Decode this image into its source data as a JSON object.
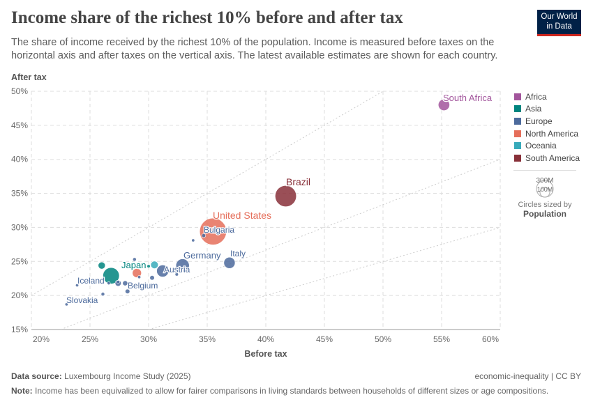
{
  "title": "Income share of the richest 10% before and after tax",
  "subtitle": "The share of income received by the richest 10% of the population. Income is measured before taxes on the horizontal axis and after taxes on the vertical axis. The latest available estimates are shown for each country.",
  "logo": "Our World in Data",
  "chart_data": {
    "type": "scatter",
    "xlabel": "Before tax",
    "ylabel": "After tax",
    "xlim": [
      20,
      60
    ],
    "ylim": [
      15,
      50
    ],
    "xticks": [
      "20%",
      "25%",
      "30%",
      "35%",
      "40%",
      "45%",
      "50%",
      "55%",
      "60%"
    ],
    "yticks": [
      "15%",
      "20%",
      "25%",
      "30%",
      "35%",
      "40%",
      "45%",
      "50%"
    ],
    "grid": true,
    "reference_lines": [
      1,
      0.6667,
      0.5
    ],
    "legend": [
      {
        "name": "Africa",
        "color": "#a2559c"
      },
      {
        "name": "Asia",
        "color": "#00847e"
      },
      {
        "name": "Europe",
        "color": "#4c6a9c"
      },
      {
        "name": "North America",
        "color": "#e56e5a"
      },
      {
        "name": "Oceania",
        "color": "#38aaba"
      },
      {
        "name": "South America",
        "color": "#883039"
      }
    ],
    "size_legend": {
      "large": "300M",
      "small": "100M",
      "caption": "Circles sized by",
      "variable": "Population"
    },
    "points": [
      {
        "label": "South Africa",
        "region": "Africa",
        "x": 55.2,
        "y": 48.0,
        "pop": 60
      },
      {
        "label": "Brazil",
        "region": "South America",
        "x": 41.7,
        "y": 34.6,
        "pop": 210
      },
      {
        "label": "United States",
        "region": "North America",
        "x": 35.5,
        "y": 29.4,
        "pop": 335
      },
      {
        "label": "Bulgaria",
        "region": "Europe",
        "x": 34.7,
        "y": 28.8,
        "pop": 7
      },
      {
        "label": "",
        "region": "Europe",
        "x": 33.8,
        "y": 28.1,
        "pop": 2
      },
      {
        "label": "Italy",
        "region": "Europe",
        "x": 36.9,
        "y": 24.8,
        "pop": 59
      },
      {
        "label": "Germany",
        "region": "Europe",
        "x": 32.9,
        "y": 24.4,
        "pop": 83
      },
      {
        "label": "Austria",
        "region": "Europe",
        "x": 31.2,
        "y": 23.6,
        "pop": 67
      },
      {
        "label": "",
        "region": "Europe",
        "x": 32.4,
        "y": 23.1,
        "pop": 5
      },
      {
        "label": "",
        "region": "Oceania",
        "x": 30.5,
        "y": 24.5,
        "pop": 26
      },
      {
        "label": "",
        "region": "Asia",
        "x": 30.0,
        "y": 24.3,
        "pop": 5
      },
      {
        "label": "Japan",
        "region": "Asia",
        "x": 26.8,
        "y": 22.9,
        "pop": 125
      },
      {
        "label": "",
        "region": "Asia",
        "x": 26.0,
        "y": 24.4,
        "pop": 23
      },
      {
        "label": "",
        "region": "North America",
        "x": 29.0,
        "y": 23.3,
        "pop": 38
      },
      {
        "label": "",
        "region": "Europe",
        "x": 28.8,
        "y": 25.3,
        "pop": 6
      },
      {
        "label": "",
        "region": "Europe",
        "x": 29.2,
        "y": 22.7,
        "pop": 3
      },
      {
        "label": "",
        "region": "Europe",
        "x": 30.3,
        "y": 22.6,
        "pop": 10
      },
      {
        "label": "",
        "region": "Europe",
        "x": 27.4,
        "y": 22.0,
        "pop": 4
      },
      {
        "label": "",
        "region": "Europe",
        "x": 27.4,
        "y": 21.8,
        "pop": 17
      },
      {
        "label": "Belgium",
        "region": "Europe",
        "x": 28.0,
        "y": 21.8,
        "pop": 12
      },
      {
        "label": "",
        "region": "Europe",
        "x": 28.2,
        "y": 20.6,
        "pop": 10
      },
      {
        "label": "",
        "region": "Europe",
        "x": 26.1,
        "y": 20.2,
        "pop": 6
      },
      {
        "label": "",
        "region": "Europe",
        "x": 26.6,
        "y": 21.8,
        "pop": 2
      },
      {
        "label": "Iceland",
        "region": "Europe",
        "x": 23.9,
        "y": 21.5,
        "pop": 0.4
      },
      {
        "label": "Slovakia",
        "region": "Europe",
        "x": 23.0,
        "y": 18.7,
        "pop": 1
      }
    ]
  },
  "footer": {
    "source_label": "Data source:",
    "source": "Luxembourg Income Study (2025)",
    "license": "economic-inequality | CC BY",
    "note_label": "Note:",
    "note": "Income has been equivalized to allow for fairer comparisons in living standards between households of different sizes or age compositions."
  }
}
